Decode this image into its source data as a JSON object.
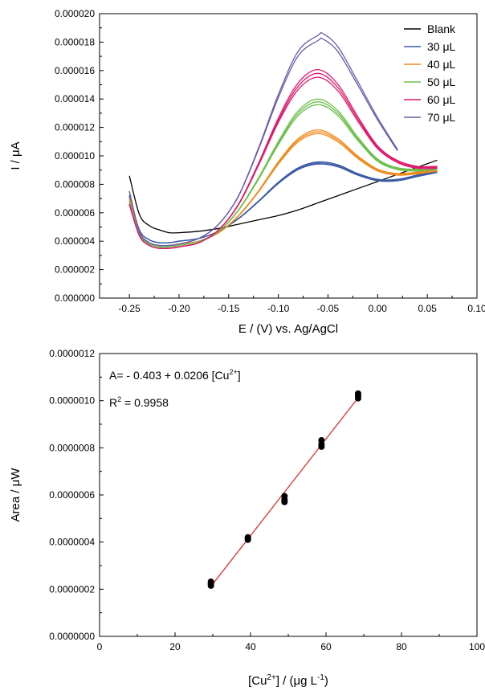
{
  "chart_data": [
    {
      "type": "line",
      "xlabel": "E / (V) vs. Ag/AgCl",
      "ylabel": "I / μA",
      "xlim": [
        -0.28,
        0.1
      ],
      "ylim": [
        0,
        2e-05
      ],
      "xticks": [
        "-0.25",
        "-0.20",
        "-0.15",
        "-0.10",
        "-0.05",
        "0.00",
        "0.05",
        "0.10"
      ],
      "yticks": [
        "0.000000",
        "0.000002",
        "0.000004",
        "0.000006",
        "0.000008",
        "0.000010",
        "0.000012",
        "0.000014",
        "0.000016",
        "0.000018",
        "0.000020"
      ],
      "legend_position": "top-right",
      "series": [
        {
          "name": "Blank",
          "color": "#000000",
          "replicates": 1,
          "x": [
            -0.25,
            -0.24,
            -0.23,
            -0.22,
            -0.21,
            -0.2,
            -0.18,
            -0.16,
            -0.14,
            -0.12,
            -0.1,
            -0.08,
            -0.06,
            -0.04,
            -0.02,
            0.0,
            0.02,
            0.04,
            0.06
          ],
          "y": [
            8.6e-06,
            5.9e-06,
            5.1e-06,
            4.8e-06,
            4.6e-06,
            4.6e-06,
            4.7e-06,
            4.9e-06,
            5.2e-06,
            5.5e-06,
            5.8e-06,
            6.2e-06,
            6.7e-06,
            7.2e-06,
            7.7e-06,
            8.2e-06,
            8.7e-06,
            9.2e-06,
            9.7e-06
          ]
        },
        {
          "name": "30 μL",
          "color": "#3b5ba5",
          "replicates": 3,
          "x": [
            -0.25,
            -0.24,
            -0.23,
            -0.22,
            -0.21,
            -0.2,
            -0.18,
            -0.16,
            -0.14,
            -0.12,
            -0.1,
            -0.08,
            -0.06,
            -0.04,
            -0.02,
            0.0,
            0.02,
            0.04,
            0.06
          ],
          "y": [
            7.2e-06,
            4.8e-06,
            4.1e-06,
            3.9e-06,
            3.9e-06,
            4e-06,
            4.2e-06,
            4.7e-06,
            5.6e-06,
            6.8e-06,
            8.1e-06,
            9.1e-06,
            9.5e-06,
            9.3e-06,
            8.7e-06,
            8.3e-06,
            8.3e-06,
            8.6e-06,
            8.9e-06
          ]
        },
        {
          "name": "40 μL",
          "color": "#f08a1c",
          "replicates": 3,
          "x": [
            -0.25,
            -0.24,
            -0.23,
            -0.22,
            -0.21,
            -0.2,
            -0.18,
            -0.16,
            -0.14,
            -0.12,
            -0.1,
            -0.08,
            -0.06,
            -0.04,
            -0.02,
            0.0,
            0.02,
            0.04,
            0.06
          ],
          "y": [
            7e-06,
            4.6e-06,
            3.9e-06,
            3.7e-06,
            3.7e-06,
            3.8e-06,
            4e-06,
            4.6e-06,
            5.8e-06,
            7.5e-06,
            9.5e-06,
            1.11e-05,
            1.17e-05,
            1.11e-05,
            9.9e-06,
            9e-06,
            8.7e-06,
            8.8e-06,
            9e-06
          ]
        },
        {
          "name": "50 μL",
          "color": "#6cbf4a",
          "replicates": 3,
          "x": [
            -0.25,
            -0.24,
            -0.23,
            -0.22,
            -0.21,
            -0.2,
            -0.18,
            -0.16,
            -0.14,
            -0.12,
            -0.1,
            -0.08,
            -0.06,
            -0.04,
            -0.02,
            0.0,
            0.02,
            0.04,
            0.06
          ],
          "y": [
            6.8e-06,
            4.5e-06,
            3.8e-06,
            3.6e-06,
            3.6e-06,
            3.7e-06,
            4e-06,
            4.7e-06,
            6.2e-06,
            8.4e-06,
            1.09e-05,
            1.3e-05,
            1.38e-05,
            1.3e-05,
            1.12e-05,
            9.7e-06,
            9.1e-06,
            9e-06,
            9.1e-06
          ]
        },
        {
          "name": "60 μL",
          "color": "#e0166c",
          "replicates": 3,
          "x": [
            -0.25,
            -0.24,
            -0.23,
            -0.22,
            -0.21,
            -0.2,
            -0.18,
            -0.16,
            -0.14,
            -0.12,
            -0.1,
            -0.08,
            -0.06,
            -0.04,
            -0.02,
            0.0,
            0.02,
            0.04,
            0.06
          ],
          "y": [
            6.6e-06,
            4.4e-06,
            3.7e-06,
            3.5e-06,
            3.5e-06,
            3.6e-06,
            3.9e-06,
            4.8e-06,
            6.6e-06,
            9.4e-06,
            1.25e-05,
            1.49e-05,
            1.58e-05,
            1.48e-05,
            1.26e-05,
            1.06e-05,
            9.6e-06,
            9.2e-06,
            9.2e-06
          ]
        },
        {
          "name": "70 μL",
          "color": "#6a5aa8",
          "replicates": 2,
          "x": [
            -0.25,
            -0.24,
            -0.23,
            -0.22,
            -0.21,
            -0.2,
            -0.18,
            -0.16,
            -0.14,
            -0.12,
            -0.1,
            -0.08,
            -0.06,
            -0.055,
            -0.04,
            -0.02,
            0.0,
            0.02
          ],
          "y": [
            7.5e-06,
            4.7e-06,
            3.9e-06,
            3.7e-06,
            3.7e-06,
            3.8e-06,
            4.2e-06,
            5.2e-06,
            7.2e-06,
            1.05e-05,
            1.42e-05,
            1.72e-05,
            1.83e-05,
            1.84e-05,
            1.75e-05,
            1.51e-05,
            1.26e-05,
            1.04e-05
          ]
        }
      ]
    },
    {
      "type": "scatter",
      "xlabel": "[Cu2+] / (μg L-1)",
      "ylabel": "Area / μW",
      "xlim": [
        0,
        100
      ],
      "ylim": [
        0,
        1.2e-06
      ],
      "xticks": [
        "0",
        "20",
        "40",
        "60",
        "80",
        "100"
      ],
      "yticks": [
        "0.0000000",
        "0.0000002",
        "0.0000004",
        "0.0000006",
        "0.0000008",
        "0.0000010",
        "0.0000012"
      ],
      "points": [
        {
          "x": 29.5,
          "y": 2.32e-07
        },
        {
          "x": 29.5,
          "y": 2.15e-07
        },
        {
          "x": 29.5,
          "y": 2.22e-07
        },
        {
          "x": 39.3,
          "y": 4.2e-07
        },
        {
          "x": 39.3,
          "y": 4.1e-07
        },
        {
          "x": 39.3,
          "y": 4.15e-07
        },
        {
          "x": 49.0,
          "y": 5.95e-07
        },
        {
          "x": 49.0,
          "y": 5.7e-07
        },
        {
          "x": 49.0,
          "y": 5.8e-07
        },
        {
          "x": 58.8,
          "y": 8.32e-07
        },
        {
          "x": 58.8,
          "y": 8.05e-07
        },
        {
          "x": 58.8,
          "y": 8.15e-07
        },
        {
          "x": 68.5,
          "y": 1.03e-06
        },
        {
          "x": 68.5,
          "y": 1.01e-06
        },
        {
          "x": 68.5,
          "y": 1.02e-06
        }
      ],
      "fit": {
        "x": [
          29.5,
          68.5
        ],
        "y": [
          2.12e-07,
          1.012e-06
        ],
        "color": "#e8312a"
      },
      "annotations": {
        "equation": "A= - 0.403 + 0.0206 [Cu",
        "eq_sup": "2+",
        "eq_end": "]",
        "r2_prefix": "R",
        "r2_sup": "2",
        "r2_suffix": " = 0.9958"
      },
      "xlabel_parts": {
        "a": "[Cu",
        "a_sup": "2+",
        "b": "] / (μg L",
        "b_sup": "-1",
        "c": ")"
      }
    }
  ]
}
